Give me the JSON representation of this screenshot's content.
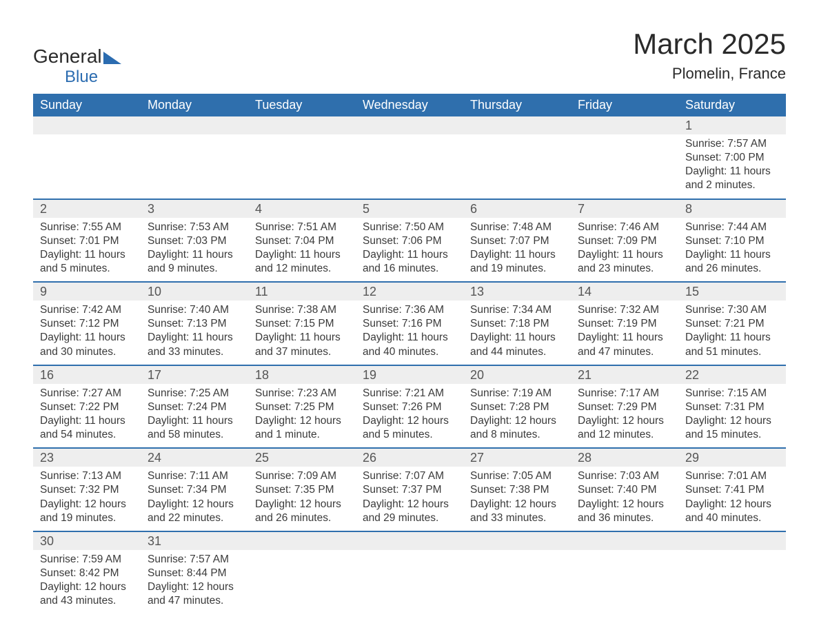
{
  "logo": {
    "line1": "General",
    "line2": "Blue"
  },
  "title": "March 2025",
  "location": "Plomelin, France",
  "colors": {
    "header_bg": "#2f6fad",
    "header_text": "#ffffff",
    "daynum_bg": "#eeeeee",
    "row_divider": "#2f6fad",
    "body_text": "#3a3a3a",
    "logo_blue": "#2b6cb0"
  },
  "weekdays": [
    "Sunday",
    "Monday",
    "Tuesday",
    "Wednesday",
    "Thursday",
    "Friday",
    "Saturday"
  ],
  "labels": {
    "sunrise": "Sunrise:",
    "sunset": "Sunset:",
    "daylight": "Daylight:"
  },
  "weeks": [
    [
      null,
      null,
      null,
      null,
      null,
      null,
      {
        "n": "1",
        "sr": "7:57 AM",
        "ss": "7:00 PM",
        "dl": "11 hours and 2 minutes."
      }
    ],
    [
      {
        "n": "2",
        "sr": "7:55 AM",
        "ss": "7:01 PM",
        "dl": "11 hours and 5 minutes."
      },
      {
        "n": "3",
        "sr": "7:53 AM",
        "ss": "7:03 PM",
        "dl": "11 hours and 9 minutes."
      },
      {
        "n": "4",
        "sr": "7:51 AM",
        "ss": "7:04 PM",
        "dl": "11 hours and 12 minutes."
      },
      {
        "n": "5",
        "sr": "7:50 AM",
        "ss": "7:06 PM",
        "dl": "11 hours and 16 minutes."
      },
      {
        "n": "6",
        "sr": "7:48 AM",
        "ss": "7:07 PM",
        "dl": "11 hours and 19 minutes."
      },
      {
        "n": "7",
        "sr": "7:46 AM",
        "ss": "7:09 PM",
        "dl": "11 hours and 23 minutes."
      },
      {
        "n": "8",
        "sr": "7:44 AM",
        "ss": "7:10 PM",
        "dl": "11 hours and 26 minutes."
      }
    ],
    [
      {
        "n": "9",
        "sr": "7:42 AM",
        "ss": "7:12 PM",
        "dl": "11 hours and 30 minutes."
      },
      {
        "n": "10",
        "sr": "7:40 AM",
        "ss": "7:13 PM",
        "dl": "11 hours and 33 minutes."
      },
      {
        "n": "11",
        "sr": "7:38 AM",
        "ss": "7:15 PM",
        "dl": "11 hours and 37 minutes."
      },
      {
        "n": "12",
        "sr": "7:36 AM",
        "ss": "7:16 PM",
        "dl": "11 hours and 40 minutes."
      },
      {
        "n": "13",
        "sr": "7:34 AM",
        "ss": "7:18 PM",
        "dl": "11 hours and 44 minutes."
      },
      {
        "n": "14",
        "sr": "7:32 AM",
        "ss": "7:19 PM",
        "dl": "11 hours and 47 minutes."
      },
      {
        "n": "15",
        "sr": "7:30 AM",
        "ss": "7:21 PM",
        "dl": "11 hours and 51 minutes."
      }
    ],
    [
      {
        "n": "16",
        "sr": "7:27 AM",
        "ss": "7:22 PM",
        "dl": "11 hours and 54 minutes."
      },
      {
        "n": "17",
        "sr": "7:25 AM",
        "ss": "7:24 PM",
        "dl": "11 hours and 58 minutes."
      },
      {
        "n": "18",
        "sr": "7:23 AM",
        "ss": "7:25 PM",
        "dl": "12 hours and 1 minute."
      },
      {
        "n": "19",
        "sr": "7:21 AM",
        "ss": "7:26 PM",
        "dl": "12 hours and 5 minutes."
      },
      {
        "n": "20",
        "sr": "7:19 AM",
        "ss": "7:28 PM",
        "dl": "12 hours and 8 minutes."
      },
      {
        "n": "21",
        "sr": "7:17 AM",
        "ss": "7:29 PM",
        "dl": "12 hours and 12 minutes."
      },
      {
        "n": "22",
        "sr": "7:15 AM",
        "ss": "7:31 PM",
        "dl": "12 hours and 15 minutes."
      }
    ],
    [
      {
        "n": "23",
        "sr": "7:13 AM",
        "ss": "7:32 PM",
        "dl": "12 hours and 19 minutes."
      },
      {
        "n": "24",
        "sr": "7:11 AM",
        "ss": "7:34 PM",
        "dl": "12 hours and 22 minutes."
      },
      {
        "n": "25",
        "sr": "7:09 AM",
        "ss": "7:35 PM",
        "dl": "12 hours and 26 minutes."
      },
      {
        "n": "26",
        "sr": "7:07 AM",
        "ss": "7:37 PM",
        "dl": "12 hours and 29 minutes."
      },
      {
        "n": "27",
        "sr": "7:05 AM",
        "ss": "7:38 PM",
        "dl": "12 hours and 33 minutes."
      },
      {
        "n": "28",
        "sr": "7:03 AM",
        "ss": "7:40 PM",
        "dl": "12 hours and 36 minutes."
      },
      {
        "n": "29",
        "sr": "7:01 AM",
        "ss": "7:41 PM",
        "dl": "12 hours and 40 minutes."
      }
    ],
    [
      {
        "n": "30",
        "sr": "7:59 AM",
        "ss": "8:42 PM",
        "dl": "12 hours and 43 minutes."
      },
      {
        "n": "31",
        "sr": "7:57 AM",
        "ss": "8:44 PM",
        "dl": "12 hours and 47 minutes."
      },
      null,
      null,
      null,
      null,
      null
    ]
  ]
}
